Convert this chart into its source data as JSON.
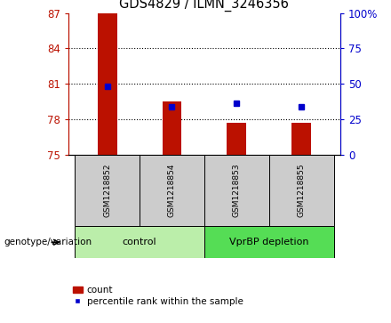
{
  "title": "GDS4829 / ILMN_3246356",
  "samples": [
    "GSM1218852",
    "GSM1218854",
    "GSM1218853",
    "GSM1218855"
  ],
  "groups": [
    {
      "label": "control",
      "indices": [
        0,
        1
      ],
      "color": "#bbeeaa"
    },
    {
      "label": "VprBP depletion",
      "indices": [
        2,
        3
      ],
      "color": "#55dd55"
    }
  ],
  "bar_values": [
    87.0,
    79.5,
    77.7,
    77.7
  ],
  "bar_baseline": 75,
  "blue_values": [
    80.8,
    79.05,
    79.35,
    79.1
  ],
  "bar_color": "#bb1100",
  "blue_color": "#0000cc",
  "ylim_left": [
    75,
    87
  ],
  "ylim_right": [
    0,
    100
  ],
  "yticks_left": [
    75,
    78,
    81,
    84,
    87
  ],
  "yticks_right": [
    0,
    25,
    50,
    75,
    100
  ],
  "ytick_labels_left": [
    "75",
    "78",
    "81",
    "84",
    "87"
  ],
  "ytick_labels_right": [
    "0",
    "25",
    "50",
    "75",
    "100%"
  ],
  "grid_ticks": [
    78,
    81,
    84
  ],
  "grid_color": "#000000",
  "sample_box_color": "#cccccc",
  "legend_items": [
    "count",
    "percentile rank within the sample"
  ],
  "genotype_label": "genotype/variation",
  "bar_width": 0.3
}
